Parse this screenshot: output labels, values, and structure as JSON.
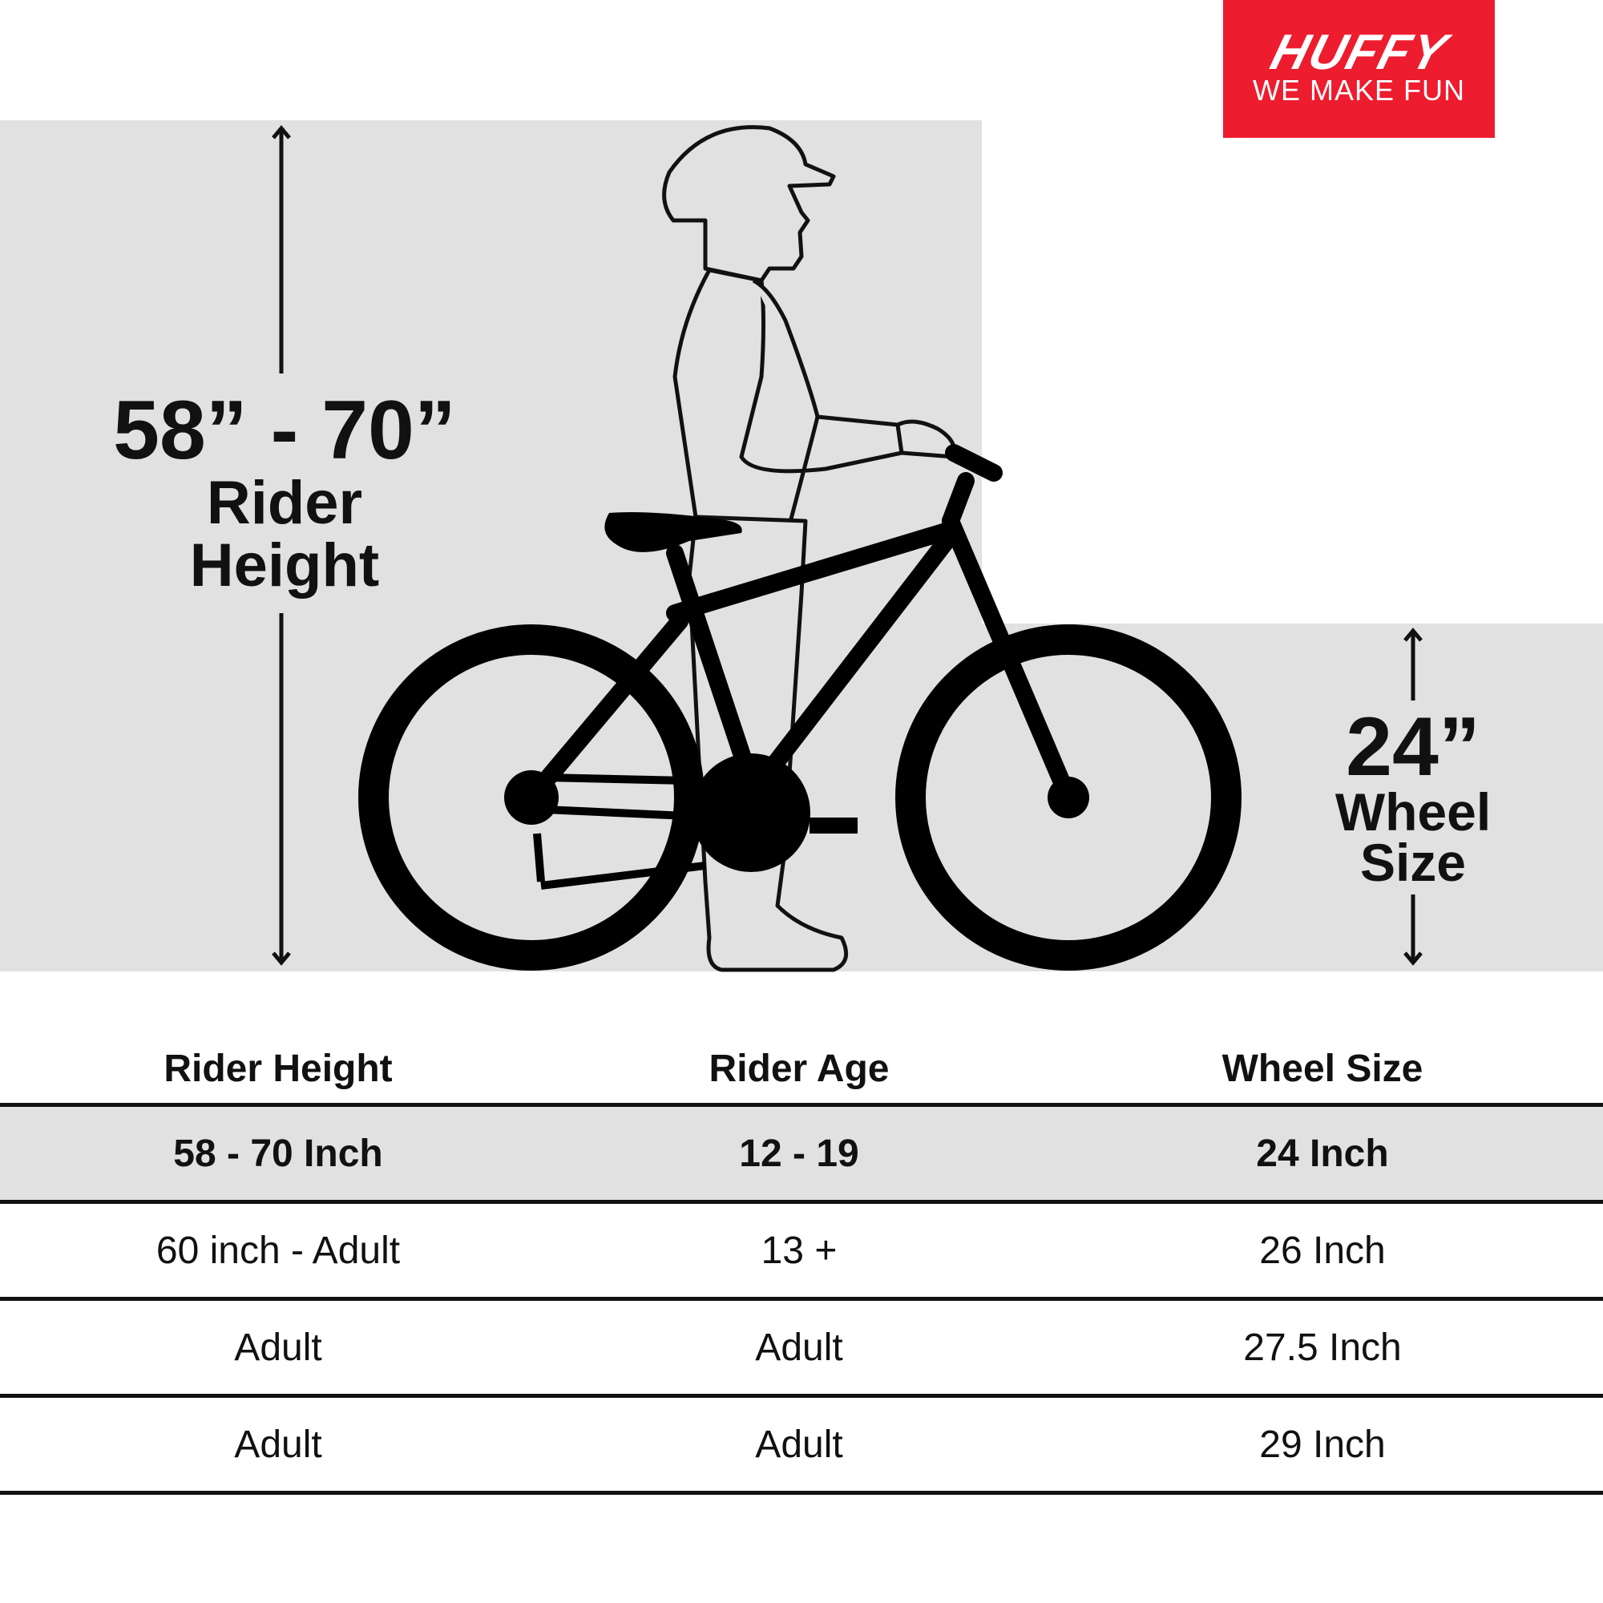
{
  "logo": {
    "brand": "HUFFY",
    "tagline": "WE MAKE FUN",
    "color": "#ed1c2e"
  },
  "illustration": {
    "rider_height_range": "58” - 70”",
    "rider_height_label_1": "Rider",
    "rider_height_label_2": "Height",
    "wheel_size_value": "24”",
    "wheel_size_label_1": "Wheel",
    "wheel_size_label_2": "Size",
    "background_color": "#e1e1e1"
  },
  "table": {
    "headers": [
      "Rider Height",
      "Rider Age",
      "Wheel Size"
    ],
    "rows": [
      [
        "58 - 70 Inch",
        "12 - 19",
        "24 Inch"
      ],
      [
        "60 inch - Adult",
        "13 +",
        "26 Inch"
      ],
      [
        "Adult",
        "Adult",
        "27.5 Inch"
      ],
      [
        "Adult",
        "Adult",
        "29 Inch"
      ]
    ],
    "highlighted_row": 0
  }
}
